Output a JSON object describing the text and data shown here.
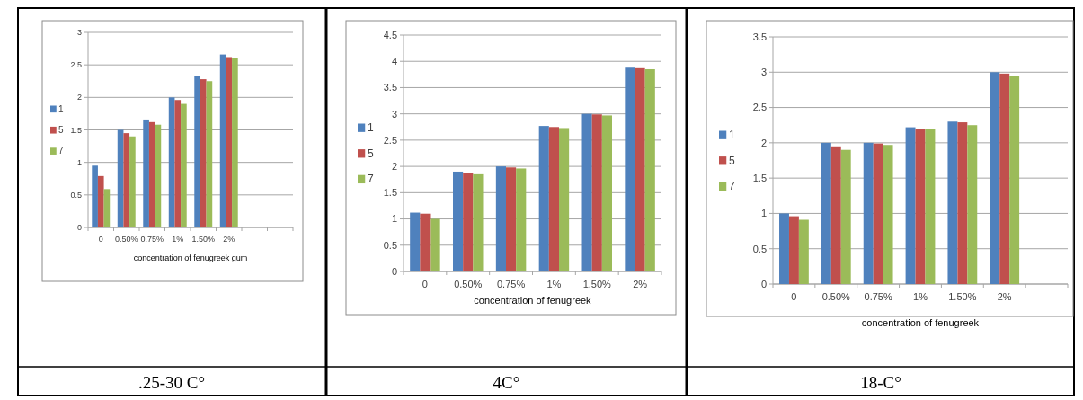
{
  "chart_data": [
    {
      "type": "bar",
      "categories": [
        "0",
        "0.50%",
        "0.75%",
        "1%",
        "1.50%",
        "2%",
        null,
        null
      ],
      "xlabel": "concentration of fenugreek gum",
      "ylim": [
        0,
        3
      ],
      "yticks": [
        0,
        0.5,
        1,
        1.5,
        2,
        2.5,
        3
      ],
      "grid": "y",
      "legend": "left",
      "annotations": [
        ".25-30  C°"
      ],
      "series": [
        {
          "name": "1",
          "color": "#4f81bd",
          "values": [
            0.95,
            1.5,
            1.66,
            2.0,
            2.33,
            2.66,
            null,
            null
          ]
        },
        {
          "name": "5",
          "color": "#c0504d",
          "values": [
            0.79,
            1.45,
            1.62,
            1.96,
            2.28,
            2.62,
            null,
            null
          ]
        },
        {
          "name": "7",
          "color": "#9bbb59",
          "values": [
            0.59,
            1.4,
            1.58,
            1.9,
            2.25,
            2.6,
            null,
            null
          ]
        }
      ]
    },
    {
      "type": "bar",
      "categories": [
        "0",
        "0.50%",
        "0.75%",
        "1%",
        "1.50%",
        "2%"
      ],
      "xlabel": "concentration of fenugreek",
      "ylim": [
        0,
        4.5
      ],
      "yticks": [
        0,
        0.5,
        1,
        1.5,
        2,
        2.5,
        3,
        3.5,
        4,
        4.5
      ],
      "grid": "y",
      "legend": "left",
      "annotations": [
        "4C°"
      ],
      "series": [
        {
          "name": "1",
          "color": "#4f81bd",
          "values": [
            1.12,
            1.9,
            2.0,
            2.77,
            3.0,
            3.88
          ]
        },
        {
          "name": "5",
          "color": "#c0504d",
          "values": [
            1.1,
            1.88,
            1.98,
            2.75,
            2.99,
            3.87
          ]
        },
        {
          "name": "7",
          "color": "#9bbb59",
          "values": [
            1.0,
            1.85,
            1.96,
            2.73,
            2.97,
            3.85
          ]
        }
      ]
    },
    {
      "type": "bar",
      "categories": [
        "0",
        "0.50%",
        "0.75%",
        "1%",
        "1.50%",
        "2%",
        null
      ],
      "xlabel": "concentration of fenugreek",
      "ylim": [
        0,
        3.5
      ],
      "yticks": [
        0,
        0.5,
        1,
        1.5,
        2,
        2.5,
        3,
        3.5
      ],
      "grid": "y",
      "legend": "left",
      "annotations": [
        "18-C°"
      ],
      "series": [
        {
          "name": "1",
          "color": "#4f81bd",
          "values": [
            1.0,
            2.0,
            2.0,
            2.22,
            2.3,
            3.0,
            null
          ]
        },
        {
          "name": "5",
          "color": "#c0504d",
          "values": [
            0.96,
            1.95,
            1.99,
            2.2,
            2.29,
            2.98,
            null
          ]
        },
        {
          "name": "7",
          "color": "#9bbb59",
          "values": [
            0.91,
            1.9,
            1.97,
            2.19,
            2.25,
            2.95,
            null
          ]
        }
      ]
    }
  ]
}
